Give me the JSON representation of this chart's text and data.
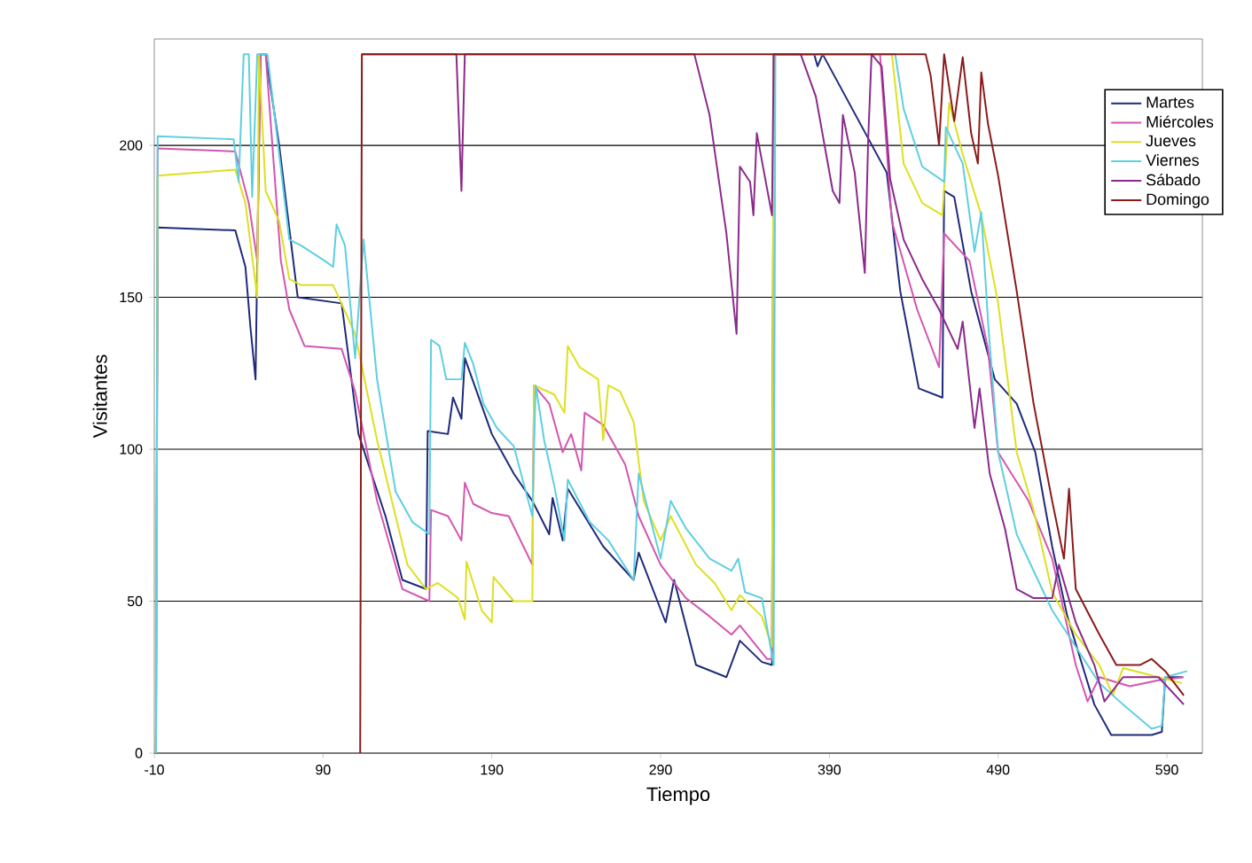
{
  "chart_data": {
    "type": "line",
    "xlabel": "Tiempo",
    "ylabel": "Visitantes",
    "xlim": [
      -10,
      611
    ],
    "ylim": [
      0,
      235
    ],
    "xticks": [
      -10,
      90,
      190,
      290,
      390,
      490,
      590
    ],
    "yticks": [
      0,
      50,
      100,
      150,
      200
    ],
    "grid": "y",
    "legend": "top right",
    "marker": "none",
    "series": [
      {
        "name": "Martes",
        "color": "#1f2a7a",
        "x": [
          -9,
          -8,
          38,
          44,
          47,
          50,
          52,
          53,
          56,
          64,
          75,
          101,
          111,
          127,
          137,
          151,
          152,
          164,
          167,
          172,
          174,
          190,
          203,
          214,
          224,
          226,
          232,
          235,
          256,
          274,
          277,
          293,
          298,
          311,
          329,
          337,
          350,
          356,
          357,
          381,
          383,
          386,
          424,
          432,
          443,
          457,
          458,
          464,
          474,
          488,
          501,
          512,
          522,
          531,
          547,
          557,
          581,
          587,
          589,
          599
        ],
        "values": [
          0,
          173,
          172,
          160,
          140,
          123,
          200,
          230,
          230,
          200,
          150,
          148,
          105,
          78,
          57,
          54,
          106,
          105,
          117,
          110,
          130,
          105,
          92,
          83,
          72,
          84,
          70,
          87,
          68,
          57,
          66,
          43,
          57,
          29,
          25,
          37,
          30,
          29,
          230,
          230,
          226,
          230,
          191,
          152,
          120,
          117,
          185,
          183,
          152,
          123,
          115,
          99,
          68,
          45,
          16,
          6,
          6,
          7,
          25,
          25
        ]
      },
      {
        "name": "Miércoles",
        "color": "#d455b0",
        "x": [
          -9,
          -8,
          38,
          46,
          51,
          53,
          56,
          65,
          70,
          79,
          101,
          109,
          122,
          137,
          153,
          154,
          164,
          172,
          174,
          179,
          190,
          200,
          214,
          215,
          224,
          232,
          237,
          243,
          245,
          256,
          269,
          277,
          290,
          305,
          319,
          332,
          337,
          353,
          356,
          357,
          420,
          427,
          442,
          455,
          458,
          473,
          484,
          490,
          508,
          522,
          536,
          543,
          550,
          568,
          585,
          600
        ],
        "values": [
          0,
          199,
          198,
          181,
          162,
          230,
          230,
          162,
          146,
          134,
          133,
          119,
          83,
          54,
          50,
          80,
          78,
          70,
          89,
          82,
          79,
          78,
          62,
          121,
          115,
          99,
          105,
          93,
          112,
          108,
          95,
          78,
          62,
          51,
          45,
          39,
          42,
          31,
          31,
          230,
          230,
          175,
          146,
          127,
          171,
          162,
          133,
          99,
          83,
          64,
          29,
          17,
          25,
          22,
          24,
          25
        ]
      },
      {
        "name": "Jueves",
        "color": "#dde021",
        "x": [
          -9,
          -8,
          38,
          44,
          51,
          52,
          56,
          64,
          70,
          77,
          96,
          109,
          122,
          140,
          151,
          158,
          170,
          174,
          175,
          184,
          190,
          191,
          203,
          214,
          215,
          227,
          233,
          235,
          242,
          253,
          256,
          259,
          266,
          274,
          280,
          290,
          296,
          311,
          322,
          332,
          337,
          350,
          356,
          357,
          427,
          429,
          434,
          445,
          457,
          461,
          469,
          480,
          490,
          501,
          511,
          522,
          536,
          550,
          558,
          564,
          585,
          599
        ],
        "values": [
          0,
          190,
          192,
          181,
          150,
          230,
          185,
          175,
          156,
          154,
          154,
          138,
          103,
          62,
          54,
          56,
          51,
          44,
          63,
          47,
          43,
          58,
          50,
          50,
          121,
          118,
          112,
          134,
          127,
          123,
          103,
          121,
          119,
          109,
          83,
          70,
          78,
          62,
          56,
          47,
          52,
          45,
          35,
          230,
          230,
          220,
          194,
          181,
          177,
          214,
          197,
          177,
          148,
          99,
          80,
          53,
          39,
          29,
          19,
          28,
          25,
          23
        ]
      },
      {
        "name": "Viernes",
        "color": "#5ecfe0",
        "x": [
          -9,
          -8,
          37,
          40,
          43,
          46,
          48,
          51,
          57,
          64,
          70,
          77,
          91,
          96,
          98,
          103,
          109,
          114,
          122,
          133,
          143,
          153,
          154,
          159,
          163,
          172,
          174,
          179,
          185,
          193,
          203,
          214,
          216,
          221,
          227,
          233,
          235,
          248,
          259,
          274,
          277,
          290,
          296,
          305,
          319,
          332,
          336,
          340,
          350,
          357,
          358,
          429,
          434,
          445,
          458,
          459,
          469,
          476,
          480,
          484,
          490,
          501,
          511,
          522,
          536,
          550,
          564,
          581,
          587,
          589,
          602
        ],
        "values": [
          0,
          203,
          202,
          188,
          230,
          230,
          183,
          230,
          230,
          197,
          169,
          167,
          162,
          160,
          174,
          167,
          130,
          169,
          123,
          86,
          76,
          72,
          136,
          134,
          123,
          123,
          135,
          128,
          115,
          107,
          101,
          78,
          121,
          103,
          88,
          70,
          90,
          76,
          70,
          57,
          92,
          64,
          83,
          74,
          64,
          60,
          64,
          53,
          51,
          29,
          230,
          230,
          212,
          193,
          188,
          206,
          194,
          165,
          178,
          142,
          99,
          72,
          60,
          47,
          35,
          23,
          16,
          8,
          9,
          25,
          27
        ]
      },
      {
        "name": "Sábado",
        "color": "#8b2a8b",
        "x": [
          113,
          169,
          172,
          174,
          310,
          319,
          329,
          335,
          337,
          343,
          345,
          347,
          356,
          357,
          373,
          382,
          392,
          396,
          398,
          405,
          411,
          413,
          415,
          421,
          426,
          434,
          445,
          455,
          466,
          469,
          476,
          479,
          485,
          494,
          501,
          511,
          522,
          526,
          536,
          547,
          553,
          564,
          585,
          600
        ],
        "values": [
          230,
          230,
          185,
          230,
          230,
          210,
          171,
          138,
          193,
          188,
          177,
          204,
          177,
          230,
          230,
          216,
          185,
          181,
          210,
          191,
          158,
          202,
          230,
          226,
          189,
          169,
          156,
          146,
          133,
          142,
          107,
          120,
          92,
          74,
          54,
          51,
          51,
          62,
          43,
          29,
          17,
          25,
          25,
          16
        ]
      },
      {
        "name": "Domingo",
        "color": "#8b1a1a",
        "x": [
          112,
          113,
          447,
          450,
          455,
          458,
          464,
          469,
          474,
          478,
          480,
          484,
          490,
          501,
          511,
          522,
          529,
          532,
          536,
          550,
          560,
          574,
          581,
          589,
          600
        ],
        "values": [
          0,
          230,
          230,
          223,
          200,
          230,
          208,
          229,
          204,
          194,
          224,
          207,
          190,
          152,
          115,
          83,
          64,
          87,
          54,
          39,
          29,
          29,
          31,
          27,
          19
        ]
      }
    ]
  }
}
